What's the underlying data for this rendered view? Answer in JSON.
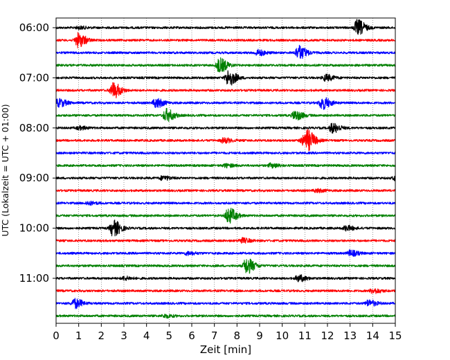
{
  "chart_data": {
    "type": "line",
    "title": "",
    "xlabel": "Zeit  [min]",
    "ylabel": "UTC (Lokalzeit = UTC + 01:00)",
    "xlim": [
      0,
      15
    ],
    "x_ticks": [
      "0",
      "1",
      "2",
      "3",
      "4",
      "5",
      "6",
      "7",
      "8",
      "9",
      "10",
      "11",
      "12",
      "13",
      "14",
      "15"
    ],
    "y_ticks": [
      "06:00",
      "07:00",
      "08:00",
      "09:00",
      "10:00",
      "11:00"
    ],
    "grid": "vertical dotted at each minute",
    "trace_interval_minutes": 15,
    "colors": [
      "#000000",
      "#ff0000",
      "#0000ff",
      "#008000"
    ],
    "traces": [
      {
        "start": "06:00",
        "color": "#000000",
        "events": [
          {
            "t": 13.3,
            "amp": 1.0
          },
          {
            "t": 1.0,
            "amp": 0.15
          }
        ]
      },
      {
        "start": "06:15",
        "color": "#ff0000",
        "events": [
          {
            "t": 0.95,
            "amp": 0.9
          }
        ]
      },
      {
        "start": "06:30",
        "color": "#0000ff",
        "events": [
          {
            "t": 10.7,
            "amp": 0.9
          },
          {
            "t": 8.9,
            "amp": 0.35
          }
        ]
      },
      {
        "start": "06:45",
        "color": "#008000",
        "events": [
          {
            "t": 7.2,
            "amp": 0.9
          }
        ]
      },
      {
        "start": "07:00",
        "color": "#000000",
        "events": [
          {
            "t": 7.6,
            "amp": 1.0
          },
          {
            "t": 11.9,
            "amp": 0.4
          }
        ]
      },
      {
        "start": "07:15",
        "color": "#ff0000",
        "events": [
          {
            "t": 2.5,
            "amp": 1.0
          }
        ]
      },
      {
        "start": "07:30",
        "color": "#0000ff",
        "events": [
          {
            "t": 0.1,
            "amp": 0.5
          },
          {
            "t": 4.4,
            "amp": 0.6
          },
          {
            "t": 11.75,
            "amp": 0.8
          }
        ]
      },
      {
        "start": "07:45",
        "color": "#008000",
        "events": [
          {
            "t": 4.85,
            "amp": 0.8
          },
          {
            "t": 10.55,
            "amp": 0.6
          }
        ]
      },
      {
        "start": "08:00",
        "color": "#000000",
        "events": [
          {
            "t": 12.2,
            "amp": 0.6
          },
          {
            "t": 1.0,
            "amp": 0.2
          }
        ]
      },
      {
        "start": "08:15",
        "color": "#ff0000",
        "events": [
          {
            "t": 10.9,
            "amp": 0.5
          },
          {
            "t": 11.1,
            "amp": 1.0
          },
          {
            "t": 7.4,
            "amp": 0.3
          }
        ]
      },
      {
        "start": "08:30",
        "color": "#0000ff",
        "events": []
      },
      {
        "start": "08:45",
        "color": "#008000",
        "events": [
          {
            "t": 9.5,
            "amp": 0.25
          },
          {
            "t": 7.5,
            "amp": 0.2
          }
        ]
      },
      {
        "start": "09:00",
        "color": "#000000",
        "events": [
          {
            "t": 4.7,
            "amp": 0.25
          },
          {
            "t": 15.0,
            "amp": 0.3
          }
        ]
      },
      {
        "start": "09:15",
        "color": "#ff0000",
        "events": [
          {
            "t": 11.5,
            "amp": 0.2
          }
        ]
      },
      {
        "start": "09:30",
        "color": "#0000ff",
        "events": [
          {
            "t": 1.4,
            "amp": 0.2
          }
        ]
      },
      {
        "start": "09:45",
        "color": "#008000",
        "events": [
          {
            "t": 7.6,
            "amp": 1.0
          }
        ]
      },
      {
        "start": "10:00",
        "color": "#000000",
        "events": [
          {
            "t": 2.5,
            "amp": 1.0
          },
          {
            "t": 12.8,
            "amp": 0.3
          }
        ]
      },
      {
        "start": "10:15",
        "color": "#ff0000",
        "events": [
          {
            "t": 8.2,
            "amp": 0.3
          }
        ]
      },
      {
        "start": "10:30",
        "color": "#0000ff",
        "events": [
          {
            "t": 13.0,
            "amp": 0.35
          },
          {
            "t": 5.8,
            "amp": 0.2
          }
        ]
      },
      {
        "start": "10:45",
        "color": "#008000",
        "events": [
          {
            "t": 8.4,
            "amp": 1.0
          }
        ]
      },
      {
        "start": "11:00",
        "color": "#000000",
        "events": [
          {
            "t": 10.7,
            "amp": 0.4
          },
          {
            "t": 3.0,
            "amp": 0.2
          }
        ]
      },
      {
        "start": "11:15",
        "color": "#ff0000",
        "events": [
          {
            "t": 14.0,
            "amp": 0.3
          }
        ]
      },
      {
        "start": "11:30",
        "color": "#0000ff",
        "events": [
          {
            "t": 0.8,
            "amp": 0.6
          },
          {
            "t": 13.8,
            "amp": 0.4
          }
        ]
      },
      {
        "start": "11:45",
        "color": "#008000",
        "events": [
          {
            "t": 4.8,
            "amp": 0.2
          }
        ]
      }
    ]
  }
}
